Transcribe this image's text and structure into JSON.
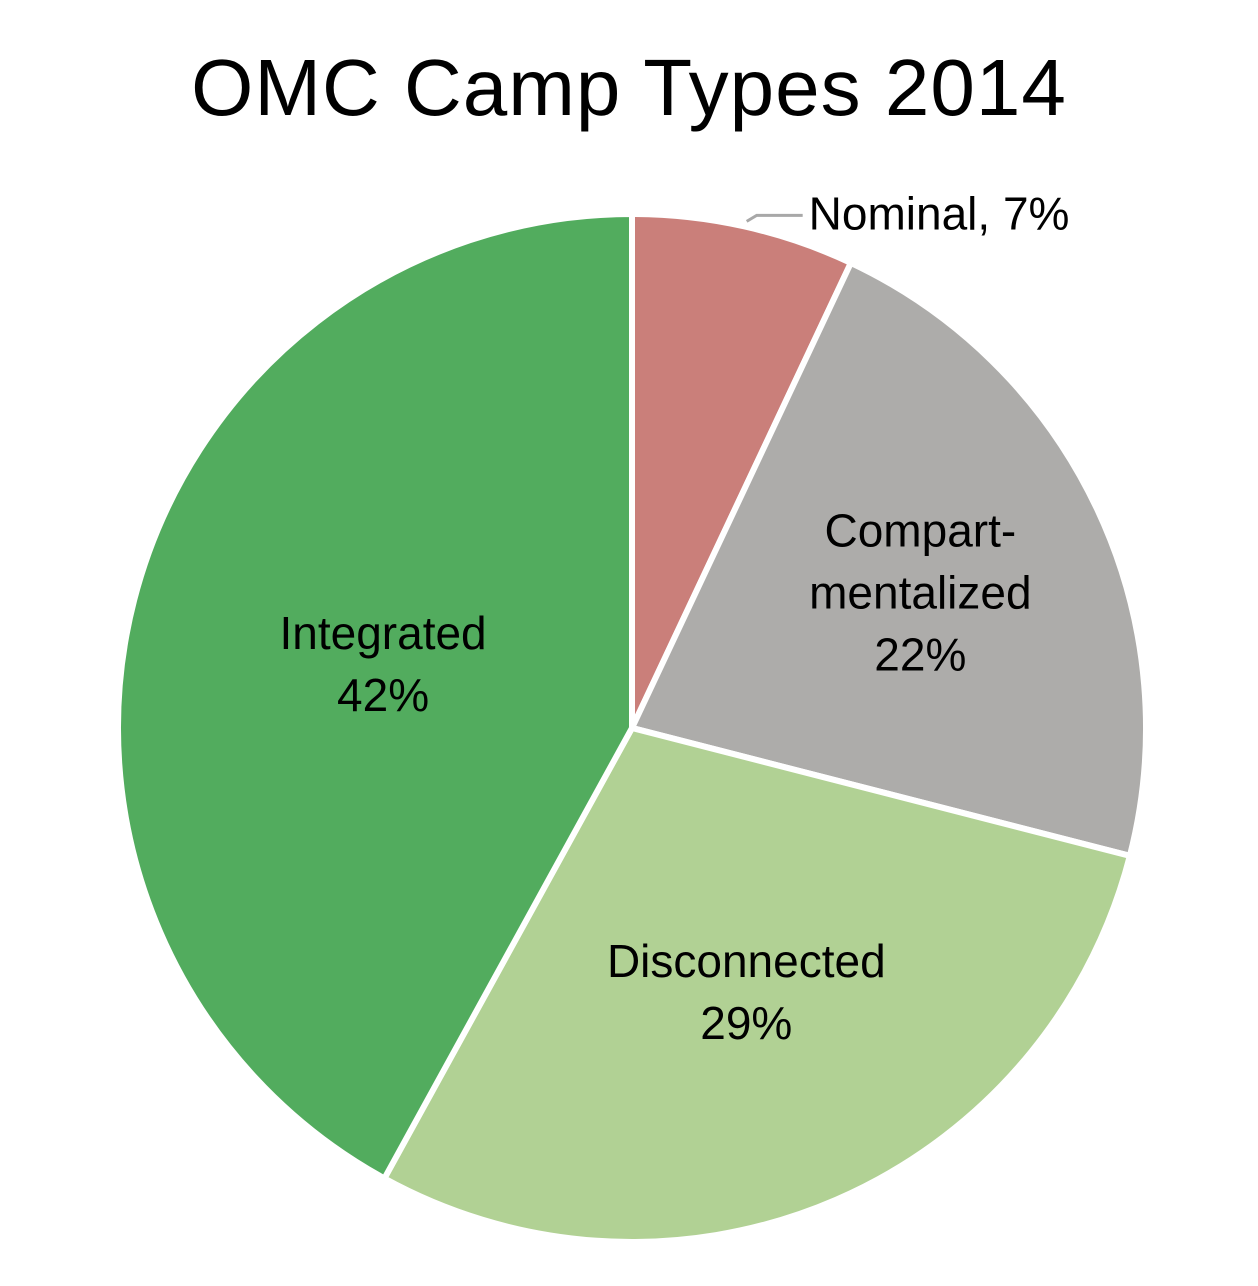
{
  "chart_data": {
    "type": "pie",
    "title": "OMC Camp Types 2014",
    "slices": [
      {
        "name": "Nominal",
        "value": 7,
        "value_label": "7%",
        "label_lines": [
          "Nominal, 7%"
        ],
        "color": "#CA7F7A",
        "label_position": "outside"
      },
      {
        "name": "Compartmentalized",
        "value": 22,
        "value_label": "22%",
        "label_lines": [
          "Compart-",
          "mentalized",
          "22%"
        ],
        "color": "#ADACAA",
        "label_position": "inside"
      },
      {
        "name": "Disconnected",
        "value": 29,
        "value_label": "29%",
        "label_lines": [
          "Disconnected",
          "29%"
        ],
        "color": "#B1D194",
        "label_position": "inside"
      },
      {
        "name": "Integrated",
        "value": 42,
        "value_label": "42%",
        "label_lines": [
          "Integrated",
          "42%"
        ],
        "color": "#52AC5E",
        "label_position": "inside"
      }
    ],
    "start_angle": "12 o'clock",
    "direction": "clockwise",
    "legend": "none"
  }
}
